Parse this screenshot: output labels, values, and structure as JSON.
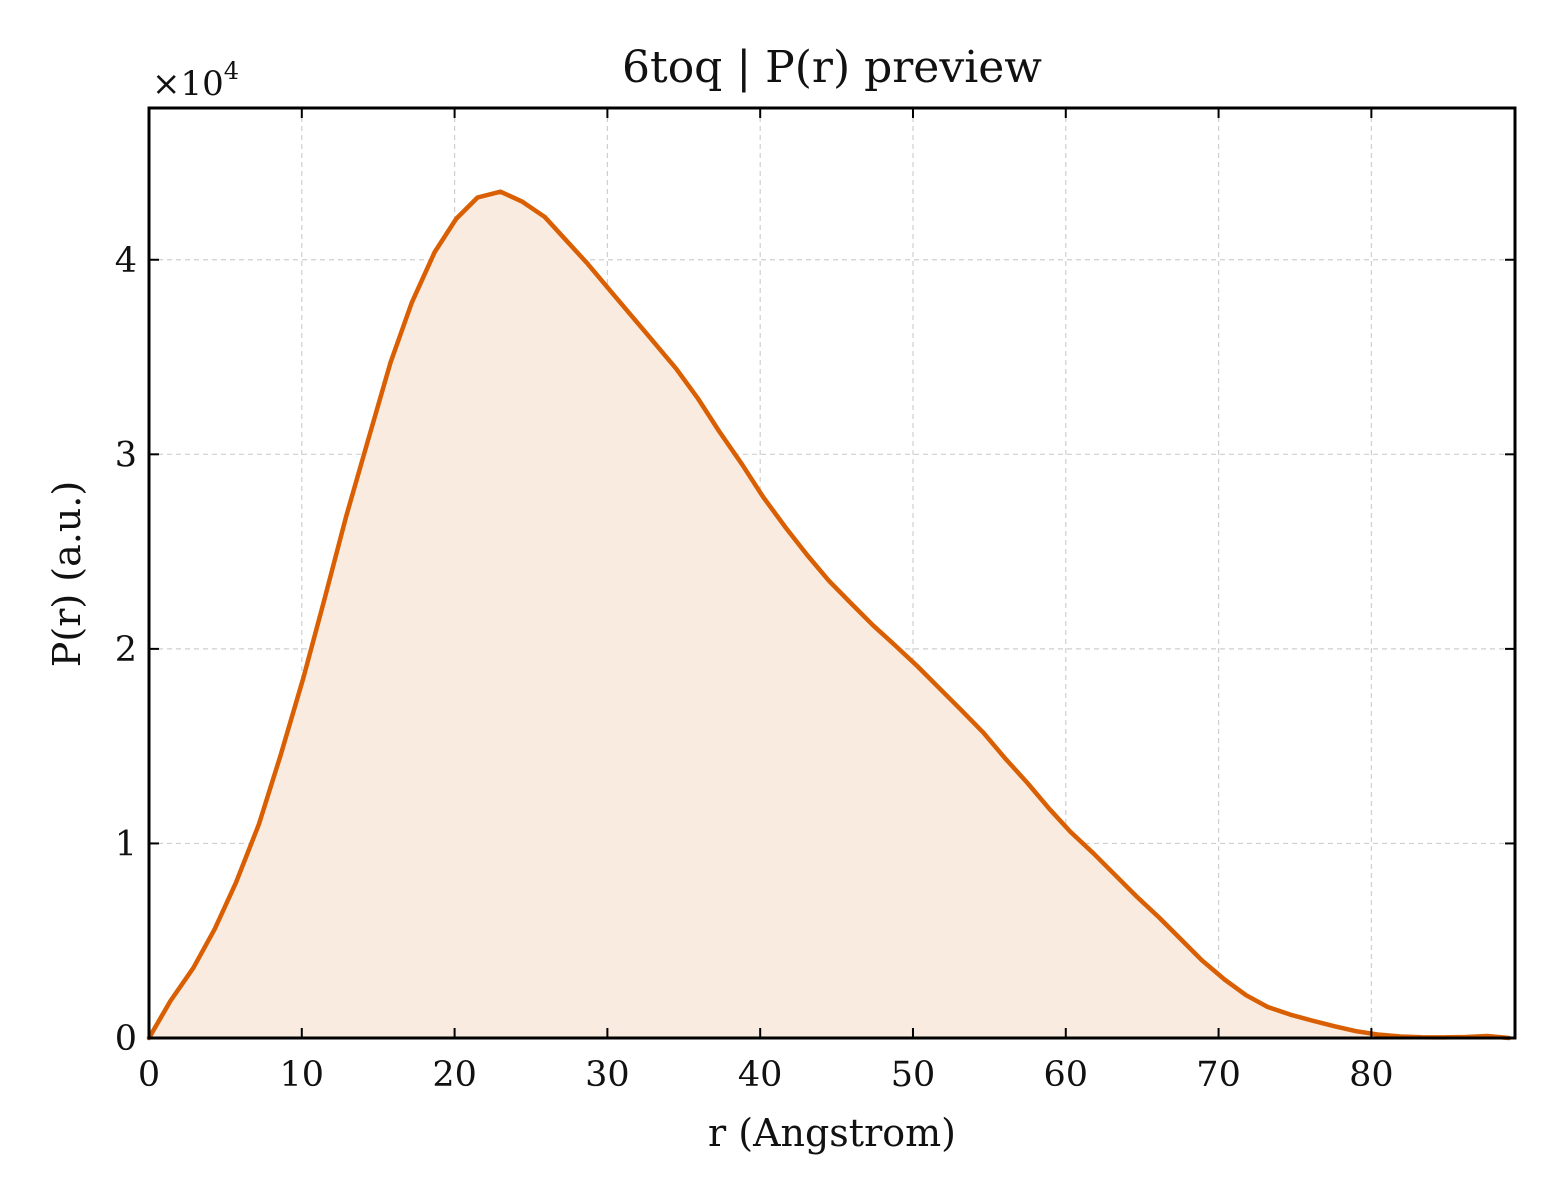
{
  "chart_data": {
    "type": "area",
    "title": "6toq | P(r) preview",
    "xlabel": "r (Angstrom)",
    "ylabel": "P(r) (a.u.)",
    "y_multiplier_label": "×10",
    "y_multiplier_exponent": "4",
    "xlim": [
      0,
      89.4
    ],
    "ylim": [
      0,
      47800
    ],
    "xticks": [
      0,
      10,
      20,
      30,
      40,
      50,
      60,
      70,
      80
    ],
    "yticks": [
      0,
      10000,
      20000,
      30000,
      40000
    ],
    "ytick_labels": [
      "0",
      "1",
      "2",
      "3",
      "4"
    ],
    "grid": true,
    "colors": {
      "line": "#d95f02",
      "fill": "#f9ebe0"
    },
    "series": [
      {
        "x": [
          0,
          1.4,
          2.9,
          4.3,
          5.7,
          7.2,
          8.6,
          10.1,
          11.5,
          12.9,
          14.4,
          15.8,
          17.2,
          18.7,
          20.1,
          21.5,
          23.0,
          24.4,
          25.9,
          27.3,
          28.7,
          30.2,
          31.6,
          33.0,
          34.5,
          35.9,
          37.3,
          38.8,
          40.2,
          41.7,
          43.1,
          44.5,
          46.0,
          47.4,
          48.8,
          50.3,
          51.7,
          53.1,
          54.6,
          56.0,
          57.5,
          58.9,
          60.3,
          61.8,
          63.2,
          64.6,
          66.1,
          67.5,
          68.9,
          70.4,
          71.8,
          73.2,
          74.7,
          76.1,
          77.6,
          79.0,
          80.4,
          81.9,
          83.3,
          84.7,
          86.2,
          87.6,
          89.0
        ],
        "y": [
          0,
          1900,
          3600,
          5600,
          8000,
          11000,
          14500,
          18500,
          22600,
          26800,
          30900,
          34700,
          37800,
          40400,
          42100,
          43200,
          43500,
          43000,
          42200,
          41000,
          39800,
          38400,
          37100,
          35800,
          34400,
          32900,
          31200,
          29500,
          27800,
          26200,
          24800,
          23500,
          22300,
          21200,
          20200,
          19100,
          18000,
          16900,
          15700,
          14400,
          13100,
          11800,
          10600,
          9500,
          8400,
          7300,
          6200,
          5100,
          4000,
          3000,
          2200,
          1600,
          1200,
          900,
          600,
          350,
          180,
          80,
          40,
          30,
          50,
          100,
          0
        ]
      }
    ]
  }
}
